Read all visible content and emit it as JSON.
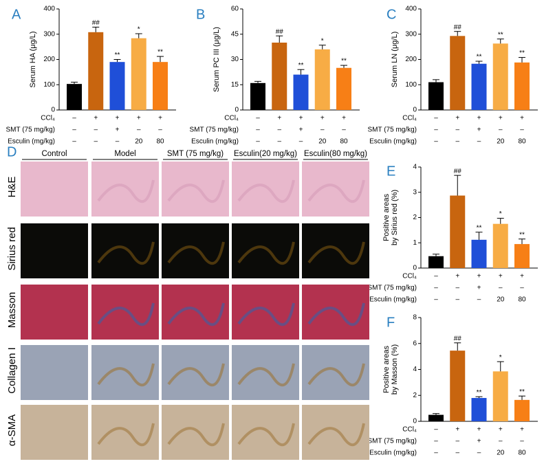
{
  "chart_data": [
    {
      "type": "bar",
      "panel": "A",
      "ylabel": [
        "Serum HA (μg/L)"
      ],
      "values": [
        103,
        308,
        190,
        284,
        190
      ],
      "errors": [
        7,
        20,
        10,
        18,
        22
      ],
      "markers": [
        null,
        "##",
        "**",
        "*",
        "**"
      ],
      "colors": [
        "#000000",
        "#c8650f",
        "#1f4fd8",
        "#f7ac45",
        "#f77f16"
      ],
      "ylim": [
        0,
        400
      ],
      "yticks": [
        0,
        100,
        200,
        300,
        400
      ],
      "treatments": [
        {
          "label": "CCl₄",
          "cells": [
            "–",
            "+",
            "+",
            "+",
            "+"
          ]
        },
        {
          "label": "SMT (75 mg/kg)",
          "cells": [
            "–",
            "–",
            "+",
            "–",
            "–"
          ]
        },
        {
          "label": "Esculin (mg/kg)",
          "cells": [
            "–",
            "–",
            "–",
            "20",
            "80"
          ]
        }
      ]
    },
    {
      "type": "bar",
      "panel": "B",
      "ylabel": [
        "Serum PC III (μg/L)"
      ],
      "values": [
        16,
        40,
        21,
        36,
        25
      ],
      "errors": [
        1,
        4,
        3,
        2.5,
        1.5
      ],
      "markers": [
        null,
        "##",
        "**",
        "*",
        "**"
      ],
      "colors": [
        "#000000",
        "#c8650f",
        "#1f4fd8",
        "#f7ac45",
        "#f77f16"
      ],
      "ylim": [
        0,
        60
      ],
      "yticks": [
        0,
        15,
        30,
        45,
        60
      ],
      "treatments": [
        {
          "label": "CCl₄",
          "cells": [
            "–",
            "+",
            "+",
            "+",
            "+"
          ]
        },
        {
          "label": "SMT (75 mg/kg)",
          "cells": [
            "–",
            "–",
            "+",
            "–",
            "–"
          ]
        },
        {
          "label": "Esculin (mg/kg)",
          "cells": [
            "–",
            "–",
            "–",
            "20",
            "80"
          ]
        }
      ]
    },
    {
      "type": "bar",
      "panel": "C",
      "ylabel": [
        "Serum LN (μg/L)"
      ],
      "values": [
        110,
        293,
        183,
        263,
        188
      ],
      "errors": [
        10,
        18,
        10,
        18,
        20
      ],
      "markers": [
        null,
        "##",
        "**",
        "**",
        "**"
      ],
      "colors": [
        "#000000",
        "#c8650f",
        "#1f4fd8",
        "#f7ac45",
        "#f77f16"
      ],
      "ylim": [
        0,
        400
      ],
      "yticks": [
        0,
        100,
        200,
        300,
        400
      ],
      "treatments": [
        {
          "label": "CCl₄",
          "cells": [
            "–",
            "+",
            "+",
            "+",
            "+"
          ]
        },
        {
          "label": "SMT (75 mg/kg)",
          "cells": [
            "–",
            "–",
            "+",
            "–",
            "–"
          ]
        },
        {
          "label": "Esculin (mg/kg)",
          "cells": [
            "–",
            "–",
            "–",
            "20",
            "80"
          ]
        }
      ]
    },
    {
      "type": "bar",
      "panel": "E",
      "ylabel": [
        "Positive areas",
        "by Sirius red  (%)"
      ],
      "values": [
        0.47,
        2.87,
        1.12,
        1.75,
        0.95
      ],
      "errors": [
        0.08,
        0.8,
        0.3,
        0.22,
        0.2
      ],
      "markers": [
        null,
        "##",
        "**",
        "*",
        "**"
      ],
      "colors": [
        "#000000",
        "#c8650f",
        "#1f4fd8",
        "#f7ac45",
        "#f77f16"
      ],
      "ylim": [
        0,
        4
      ],
      "yticks": [
        0,
        1,
        2,
        3,
        4
      ],
      "treatments": [
        {
          "label": "CCl₄",
          "cells": [
            "–",
            "+",
            "+",
            "+",
            "+"
          ]
        },
        {
          "label": "SMT (75 mg/kg)",
          "cells": [
            "–",
            "–",
            "+",
            "–",
            "–"
          ]
        },
        {
          "label": "Esculin (mg/kg)",
          "cells": [
            "–",
            "–",
            "–",
            "20",
            "80"
          ]
        }
      ]
    },
    {
      "type": "bar",
      "panel": "F",
      "ylabel": [
        "Positive areas",
        "by Masson (%)"
      ],
      "values": [
        0.5,
        5.45,
        1.8,
        3.85,
        1.65
      ],
      "errors": [
        0.1,
        0.6,
        0.1,
        0.75,
        0.3
      ],
      "markers": [
        null,
        "##",
        "**",
        "*",
        "**"
      ],
      "colors": [
        "#000000",
        "#c8650f",
        "#1f4fd8",
        "#f7ac45",
        "#f77f16"
      ],
      "ylim": [
        0,
        8
      ],
      "yticks": [
        0,
        2,
        4,
        6,
        8
      ],
      "treatments": [
        {
          "label": "CCl₄",
          "cells": [
            "–",
            "+",
            "+",
            "+",
            "+"
          ]
        },
        {
          "label": "SMT (75 mg/kg)",
          "cells": [
            "–",
            "–",
            "+",
            "–",
            "–"
          ]
        },
        {
          "label": "Esculin (mg/kg)",
          "cells": [
            "–",
            "–",
            "–",
            "20",
            "80"
          ]
        }
      ]
    }
  ],
  "histology": {
    "panel": "D",
    "columns": [
      "Control",
      "Model",
      "SMT (75 mg/kg)",
      "Esculin(20 mg/kg)",
      "Esculin(80 mg/kg)"
    ],
    "rows": [
      "H&E",
      "Sirius red",
      "Masson",
      "Collagen I",
      "α-SMA"
    ]
  }
}
